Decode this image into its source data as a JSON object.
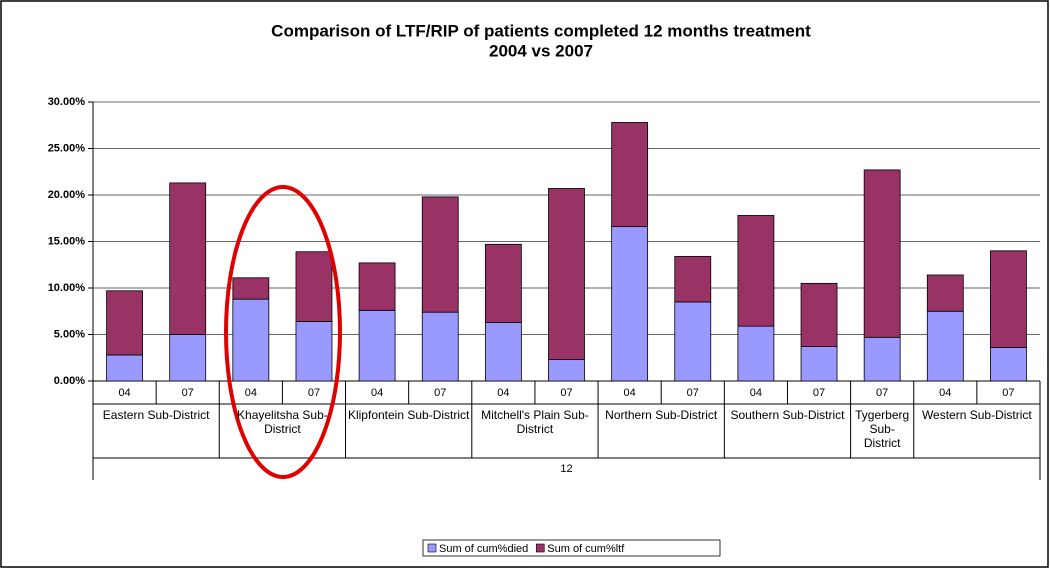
{
  "chart_data": {
    "type": "stacked_bar",
    "title": [
      "Comparison of LTF/RIP of patients completed 12 months treatment",
      "2004 vs 2007"
    ],
    "outer_group": "12",
    "groups": [
      {
        "label": "Eastern Sub-District",
        "categories": [
          "04",
          "07"
        ]
      },
      {
        "label": "Khayelitsha Sub-District",
        "categories": [
          "04",
          "07"
        ]
      },
      {
        "label": "Klipfontein Sub-District",
        "categories": [
          "04",
          "07"
        ]
      },
      {
        "label": "Mitchell's Plain Sub-District",
        "categories": [
          "04",
          "07"
        ]
      },
      {
        "label": "Northern Sub-District",
        "categories": [
          "04",
          "07"
        ]
      },
      {
        "label": "Southern Sub-District",
        "categories": [
          "04",
          "07"
        ]
      },
      {
        "label": "Tygerberg Sub-District",
        "categories": [
          "07"
        ]
      },
      {
        "label": "Western Sub-District",
        "categories": [
          "04",
          "07"
        ]
      }
    ],
    "series": [
      {
        "name": "Sum of cum%died",
        "color": "#9999ff",
        "values": [
          2.8,
          5.0,
          8.8,
          6.4,
          7.6,
          7.4,
          6.3,
          2.3,
          16.6,
          8.5,
          5.9,
          3.7,
          4.7,
          7.5,
          3.6
        ]
      },
      {
        "name": "Sum of cum%ltf",
        "color": "#993366",
        "values": [
          6.9,
          16.3,
          2.3,
          7.5,
          5.1,
          12.4,
          8.4,
          18.4,
          11.2,
          4.9,
          11.9,
          6.8,
          18.0,
          3.9,
          10.4
        ]
      }
    ],
    "ylim": [
      0,
      30
    ],
    "yticks": [
      {
        "value": 0,
        "label": "0.00%"
      },
      {
        "value": 5,
        "label": "5.00%"
      },
      {
        "value": 10,
        "label": "10.00%"
      },
      {
        "value": 15,
        "label": "15.00%"
      },
      {
        "value": 20,
        "label": "20.00%"
      },
      {
        "value": 25,
        "label": "25.00%"
      },
      {
        "value": 30,
        "label": "30.00%"
      }
    ],
    "grid": true
  }
}
